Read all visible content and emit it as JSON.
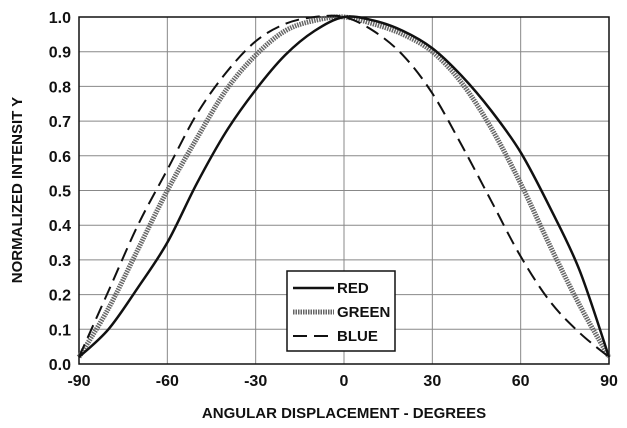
{
  "chart_data": {
    "type": "line",
    "xlabel": "ANGULAR DISPLACEMENT - DEGREES",
    "ylabel": "NORMALIZED INTENSIT   Y",
    "xlim": [
      -90,
      90
    ],
    "ylim": [
      0.0,
      1.0
    ],
    "x_ticks": [
      "-90",
      "-60",
      "-30",
      "0",
      "30",
      "60",
      "90"
    ],
    "y_ticks": [
      "0.0",
      "0.1",
      "0.2",
      "0.3",
      "0.4",
      "0.5",
      "0.6",
      "0.7",
      "0.8",
      "0.9",
      "1.0"
    ],
    "grid": true,
    "legend_position": "bottom-center",
    "x": [
      -90,
      -80,
      -70,
      -60,
      -50,
      -40,
      -30,
      -20,
      -10,
      0,
      10,
      20,
      30,
      40,
      50,
      60,
      70,
      80,
      90
    ],
    "series": [
      {
        "name": "RED",
        "style": "solid",
        "color": "#111111",
        "values": [
          0.02,
          0.1,
          0.22,
          0.35,
          0.52,
          0.67,
          0.79,
          0.89,
          0.96,
          1.0,
          0.99,
          0.96,
          0.91,
          0.83,
          0.73,
          0.61,
          0.45,
          0.27,
          0.02
        ]
      },
      {
        "name": "GREEN",
        "style": "thick-textured",
        "color": "#666666",
        "values": [
          0.02,
          0.16,
          0.33,
          0.5,
          0.65,
          0.79,
          0.89,
          0.96,
          0.99,
          1.0,
          0.98,
          0.95,
          0.9,
          0.81,
          0.68,
          0.52,
          0.34,
          0.17,
          0.02
        ]
      },
      {
        "name": "BLUE",
        "style": "dashed",
        "color": "#111111",
        "values": [
          0.02,
          0.21,
          0.4,
          0.56,
          0.72,
          0.84,
          0.93,
          0.98,
          1.0,
          1.0,
          0.96,
          0.89,
          0.78,
          0.63,
          0.47,
          0.31,
          0.18,
          0.09,
          0.02
        ]
      }
    ]
  }
}
